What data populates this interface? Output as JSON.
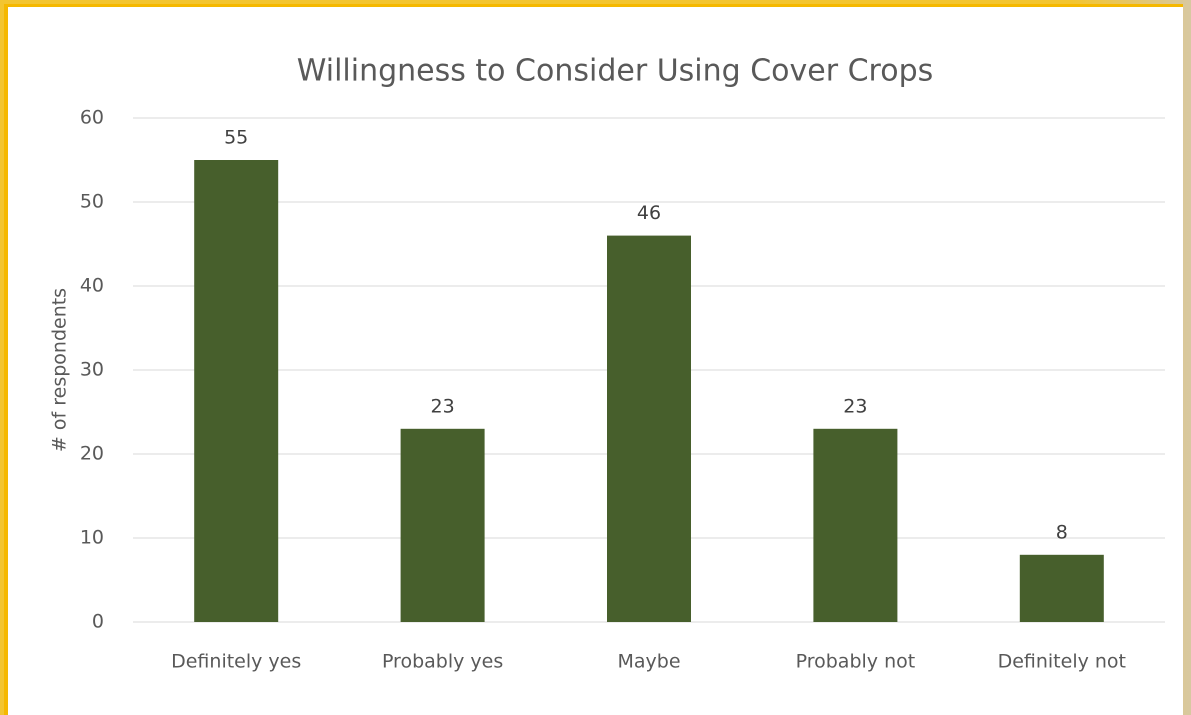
{
  "chart_data": {
    "type": "bar",
    "title": "Willingness to Consider Using Cover Crops",
    "y_label": "# of respondents",
    "categories": [
      "Definitely yes",
      "Probably yes",
      "Maybe",
      "Probably not",
      "Definitely not"
    ],
    "values": [
      55,
      23,
      46,
      23,
      8
    ],
    "color": "#475f2c",
    "ylim": [
      0,
      60
    ],
    "yticks": [
      0,
      10,
      20,
      30,
      40,
      50,
      60
    ],
    "grid": true
  }
}
